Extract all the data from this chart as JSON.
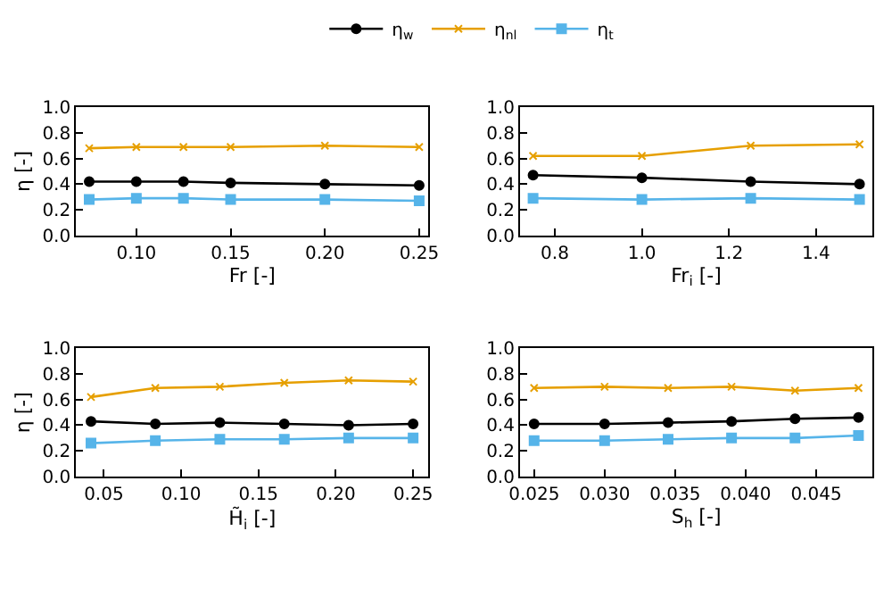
{
  "chart_data": [
    {
      "type": "line",
      "x": [
        0.075,
        0.1,
        0.125,
        0.15,
        0.2,
        0.25
      ],
      "xlabel": "Fr [-]",
      "ylabel": "η [-]",
      "xlim": [
        0.068,
        0.255
      ],
      "xticks": [
        {
          "value": 0.1,
          "label": "0.10"
        },
        {
          "value": 0.15,
          "label": "0.15"
        },
        {
          "value": 0.2,
          "label": "0.20"
        },
        {
          "value": 0.25,
          "label": "0.25"
        }
      ],
      "ylim": [
        0,
        1
      ],
      "yticks": [
        {
          "value": 0,
          "label": "0.0"
        },
        {
          "value": 0.2,
          "label": "0.2"
        },
        {
          "value": 0.4,
          "label": "0.4"
        },
        {
          "value": 0.6,
          "label": "0.6"
        },
        {
          "value": 0.8,
          "label": "0.8"
        },
        {
          "value": 1,
          "label": "1.0"
        }
      ],
      "legend": "top",
      "series": [
        {
          "name": "η$_{w}$",
          "color": "#000000",
          "marker": "circle",
          "values": [
            0.42,
            0.42,
            0.42,
            0.41,
            0.4,
            0.39
          ]
        },
        {
          "name": "η$_{nl}$",
          "color": "#e69f00",
          "marker": "cross",
          "values": [
            0.68,
            0.69,
            0.69,
            0.69,
            0.7,
            0.69
          ]
        },
        {
          "name": "η$_{t}$",
          "color": "#56b4e9",
          "marker": "square",
          "values": [
            0.28,
            0.29,
            0.29,
            0.28,
            0.28,
            0.27
          ]
        }
      ]
    },
    {
      "type": "line",
      "x": [
        0.75,
        1.0,
        1.25,
        1.5
      ],
      "xlabel": "Fr$_{i}$ [-]",
      "xlim": [
        0.72,
        1.53
      ],
      "xticks": [
        {
          "value": 0.8,
          "label": "0.8"
        },
        {
          "value": 1,
          "label": "1.0"
        },
        {
          "value": 1.2,
          "label": "1.2"
        },
        {
          "value": 1.4,
          "label": "1.4"
        }
      ],
      "ylim": [
        0,
        1
      ],
      "yticks": [
        {
          "value": 0,
          "label": "0.0"
        },
        {
          "value": 0.2,
          "label": "0.2"
        },
        {
          "value": 0.4,
          "label": "0.4"
        },
        {
          "value": 0.6,
          "label": "0.6"
        },
        {
          "value": 0.8,
          "label": "0.8"
        },
        {
          "value": 1,
          "label": "1.0"
        }
      ],
      "series": [
        {
          "color": "#000000",
          "marker": "circle",
          "values": [
            0.47,
            0.45,
            0.42,
            0.4
          ]
        },
        {
          "color": "#e69f00",
          "marker": "cross",
          "values": [
            0.62,
            0.62,
            0.7,
            0.71
          ]
        },
        {
          "color": "#56b4e9",
          "marker": "square",
          "values": [
            0.29,
            0.28,
            0.29,
            0.28
          ]
        }
      ]
    },
    {
      "type": "line",
      "x": [
        0.0417,
        0.0833,
        0.125,
        0.1667,
        0.2083,
        0.25
      ],
      "xlabel": "H̃$_{i}$ [-]",
      "ylabel": "η [-]",
      "xlim": [
        0.032,
        0.26
      ],
      "xticks": [
        {
          "value": 0.05,
          "label": "0.05"
        },
        {
          "value": 0.1,
          "label": "0.10"
        },
        {
          "value": 0.15,
          "label": "0.15"
        },
        {
          "value": 0.2,
          "label": "0.20"
        },
        {
          "value": 0.25,
          "label": "0.25"
        }
      ],
      "ylim": [
        0,
        1
      ],
      "yticks": [
        {
          "value": 0,
          "label": "0.0"
        },
        {
          "value": 0.2,
          "label": "0.2"
        },
        {
          "value": 0.4,
          "label": "0.4"
        },
        {
          "value": 0.6,
          "label": "0.6"
        },
        {
          "value": 0.8,
          "label": "0.8"
        },
        {
          "value": 1,
          "label": "1.0"
        }
      ],
      "series": [
        {
          "color": "#000000",
          "marker": "circle",
          "values": [
            0.43,
            0.41,
            0.42,
            0.41,
            0.4,
            0.41
          ]
        },
        {
          "color": "#e69f00",
          "marker": "cross",
          "values": [
            0.62,
            0.69,
            0.7,
            0.73,
            0.75,
            0.74
          ]
        },
        {
          "color": "#56b4e9",
          "marker": "square",
          "values": [
            0.26,
            0.28,
            0.29,
            0.29,
            0.3,
            0.3
          ]
        }
      ]
    },
    {
      "type": "line",
      "x": [
        0.025,
        0.03,
        0.0345,
        0.039,
        0.0435,
        0.048
      ],
      "xlabel": "S$_{h}$ [-]",
      "xlim": [
        0.024,
        0.049
      ],
      "xticks": [
        {
          "value": 0.025,
          "label": "0.025"
        },
        {
          "value": 0.03,
          "label": "0.030"
        },
        {
          "value": 0.035,
          "label": "0.035"
        },
        {
          "value": 0.04,
          "label": "0.040"
        },
        {
          "value": 0.045,
          "label": "0.045"
        }
      ],
      "ylim": [
        0,
        1
      ],
      "yticks": [
        {
          "value": 0,
          "label": "0.0"
        },
        {
          "value": 0.2,
          "label": "0.2"
        },
        {
          "value": 0.4,
          "label": "0.4"
        },
        {
          "value": 0.6,
          "label": "0.6"
        },
        {
          "value": 0.8,
          "label": "0.8"
        },
        {
          "value": 1,
          "label": "1.0"
        }
      ],
      "series": [
        {
          "color": "#000000",
          "marker": "circle",
          "values": [
            0.41,
            0.41,
            0.42,
            0.43,
            0.45,
            0.46
          ]
        },
        {
          "color": "#e69f00",
          "marker": "cross",
          "values": [
            0.69,
            0.7,
            0.69,
            0.7,
            0.67,
            0.69
          ]
        },
        {
          "color": "#56b4e9",
          "marker": "square",
          "values": [
            0.28,
            0.28,
            0.29,
            0.3,
            0.3,
            0.32
          ]
        }
      ]
    }
  ]
}
